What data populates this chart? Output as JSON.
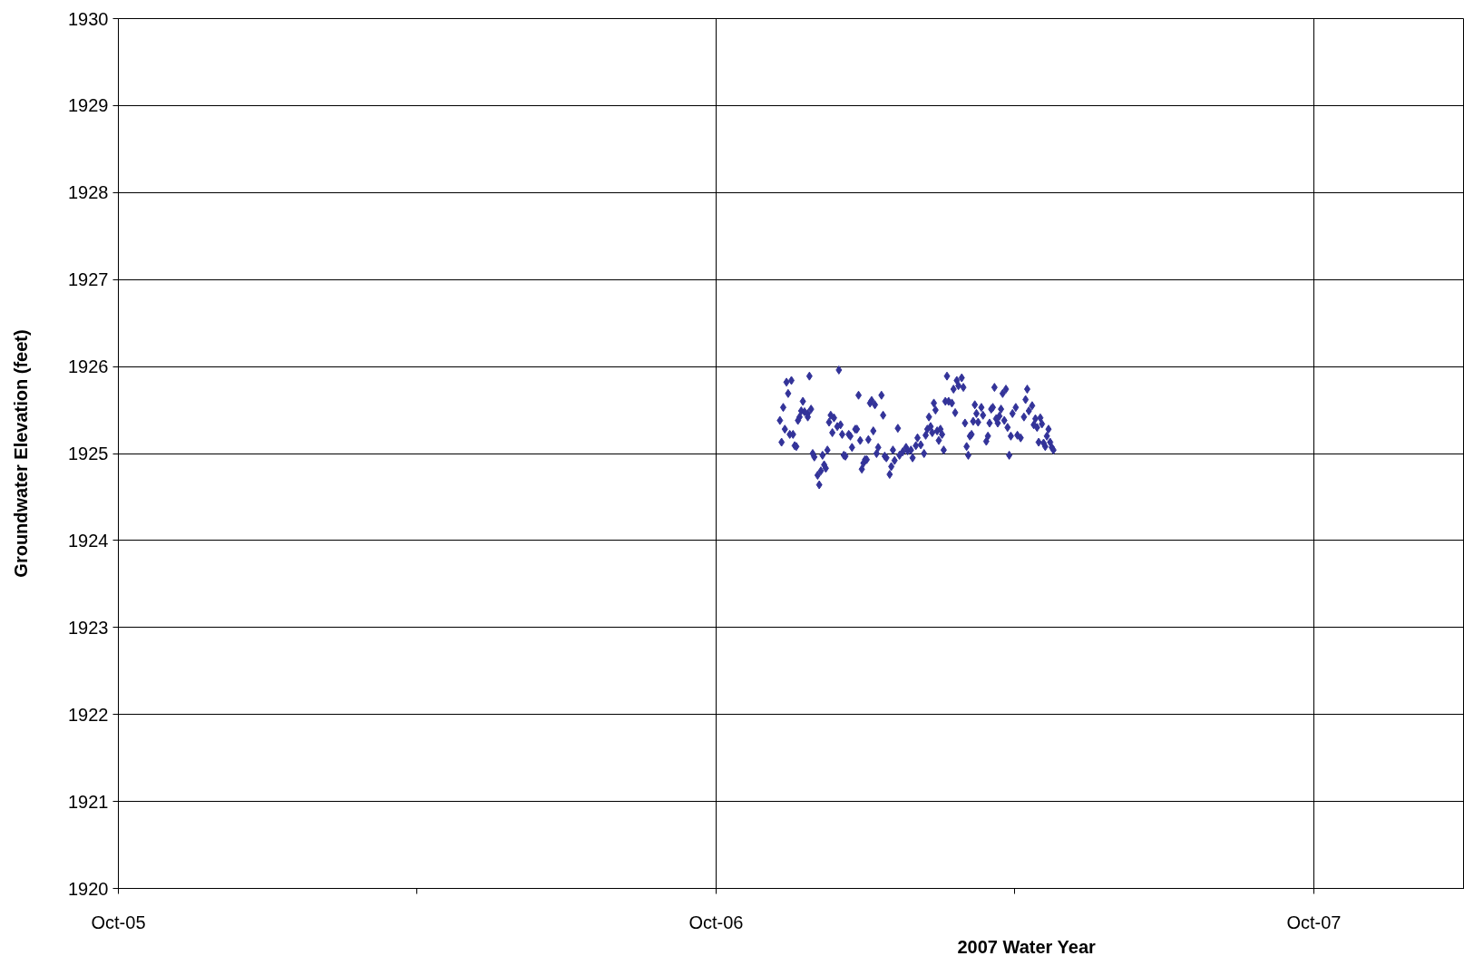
{
  "chart_data": {
    "type": "scatter",
    "xlabel": "2007 Water Year",
    "ylabel": "Groundwater Elevation (feet)",
    "x": [
      "2006-11-09",
      "2006-11-10",
      "2006-11-11",
      "2006-11-12",
      "2006-11-13",
      "2006-11-14",
      "2006-11-15",
      "2006-11-16",
      "2006-11-17",
      "2006-11-18",
      "2006-11-19",
      "2006-11-20",
      "2006-11-21",
      "2006-11-22",
      "2006-11-23",
      "2006-11-24",
      "2006-11-26",
      "2006-11-26",
      "2006-11-27",
      "2006-11-28",
      "2006-11-29",
      "2006-11-30",
      "2006-12-02",
      "2006-12-03",
      "2006-12-04",
      "2006-12-05",
      "2006-12-06",
      "2006-12-07",
      "2006-12-08",
      "2006-12-09",
      "2006-12-10",
      "2006-12-11",
      "2006-12-12",
      "2006-12-14",
      "2006-12-15",
      "2006-12-16",
      "2006-12-17",
      "2006-12-18",
      "2006-12-19",
      "2006-12-21",
      "2006-12-22",
      "2006-12-23",
      "2006-12-25",
      "2006-12-26",
      "2006-12-27",
      "2006-12-28",
      "2006-12-29",
      "2006-12-30",
      "2006-12-31",
      "2007-01-01",
      "2007-01-02",
      "2007-01-03",
      "2007-01-04",
      "2007-01-05",
      "2007-01-06",
      "2007-01-07",
      "2007-01-08",
      "2007-01-10",
      "2007-01-11",
      "2007-01-12",
      "2007-01-13",
      "2007-01-15",
      "2007-01-16",
      "2007-01-17",
      "2007-01-18",
      "2007-01-20",
      "2007-01-21",
      "2007-01-23",
      "2007-01-25",
      "2007-01-26",
      "2007-01-28",
      "2007-01-29",
      "2007-01-31",
      "2007-02-01",
      "2007-02-03",
      "2007-02-05",
      "2007-02-06",
      "2007-02-07",
      "2007-02-08",
      "2007-02-09",
      "2007-02-10",
      "2007-02-11",
      "2007-02-12",
      "2007-02-13",
      "2007-02-14",
      "2007-02-15",
      "2007-02-16",
      "2007-02-17",
      "2007-02-18",
      "2007-02-19",
      "2007-02-20",
      "2007-02-22",
      "2007-02-23",
      "2007-02-24",
      "2007-02-25",
      "2007-02-26",
      "2007-02-28",
      "2007-03-01",
      "2007-03-02",
      "2007-03-03",
      "2007-03-04",
      "2007-03-05",
      "2007-03-06",
      "2007-03-07",
      "2007-03-08",
      "2007-03-09",
      "2007-03-10",
      "2007-03-12",
      "2007-03-13",
      "2007-03-15",
      "2007-03-16",
      "2007-03-17",
      "2007-03-18",
      "2007-03-19",
      "2007-03-20",
      "2007-03-21",
      "2007-03-22",
      "2007-03-23",
      "2007-03-24",
      "2007-03-25",
      "2007-03-26",
      "2007-03-27",
      "2007-03-28",
      "2007-03-29",
      "2007-03-30",
      "2007-03-31",
      "2007-04-02",
      "2007-04-03",
      "2007-04-05",
      "2007-04-07",
      "2007-04-08",
      "2007-04-09",
      "2007-04-10",
      "2007-04-12",
      "2007-04-13",
      "2007-04-14",
      "2007-04-15",
      "2007-04-16",
      "2007-04-17",
      "2007-04-18",
      "2007-04-19",
      "2007-04-20",
      "2007-04-21",
      "2007-04-22",
      "2007-04-23",
      "2007-04-24",
      "2007-04-25"
    ],
    "values": [
      1925.38,
      1925.13,
      1925.53,
      1925.28,
      1925.82,
      1925.69,
      1925.22,
      1925.84,
      1925.22,
      1925.09,
      1925.08,
      1925.38,
      1925.42,
      1925.49,
      1925.6,
      1925.48,
      1925.46,
      1925.42,
      1925.89,
      1925.51,
      1925.0,
      1924.96,
      1924.75,
      1924.64,
      1924.8,
      1924.98,
      1924.87,
      1924.83,
      1925.04,
      1925.36,
      1925.44,
      1925.24,
      1925.41,
      1925.31,
      1925.96,
      1925.33,
      1925.22,
      1924.98,
      1924.97,
      1925.22,
      1925.2,
      1925.07,
      1925.28,
      1925.28,
      1925.67,
      1925.15,
      1924.82,
      1924.89,
      1924.93,
      1924.93,
      1925.16,
      1925.58,
      1925.61,
      1925.26,
      1925.56,
      1925.0,
      1925.07,
      1925.67,
      1925.44,
      1924.97,
      1924.95,
      1924.76,
      1924.85,
      1925.04,
      1924.92,
      1925.29,
      1924.98,
      1925.02,
      1925.07,
      1925.03,
      1925.04,
      1924.95,
      1925.09,
      1925.18,
      1925.1,
      1925.0,
      1925.21,
      1925.28,
      1925.42,
      1925.31,
      1925.24,
      1925.58,
      1925.5,
      1925.26,
      1925.15,
      1925.28,
      1925.22,
      1925.04,
      1925.6,
      1925.89,
      1925.6,
      1925.58,
      1925.74,
      1925.47,
      1925.84,
      1925.78,
      1925.87,
      1925.76,
      1925.35,
      1925.08,
      1924.98,
      1925.2,
      1925.22,
      1925.37,
      1925.56,
      1925.46,
      1925.36,
      1925.53,
      1925.44,
      1925.14,
      1925.2,
      1925.35,
      1925.51,
      1925.53,
      1925.76,
      1925.4,
      1925.35,
      1925.43,
      1925.51,
      1925.69,
      1925.38,
      1925.74,
      1925.3,
      1924.98,
      1925.2,
      1925.46,
      1925.53,
      1925.21,
      1925.18,
      1925.42,
      1925.62,
      1925.74,
      1925.49,
      1925.55,
      1925.33,
      1925.4,
      1925.3,
      1925.13,
      1925.41,
      1925.34,
      1925.12,
      1925.08,
      1925.2,
      1925.28,
      1925.13,
      1925.07,
      1925.04
    ],
    "color": "#333399",
    "marker": "diamond",
    "grid": true,
    "xlim": [
      "2005-10-01",
      "2008-01-01"
    ],
    "xticks": [
      {
        "value": "2005-10-01",
        "label": "Oct-05"
      },
      {
        "value": "2006-04-01",
        "label": null
      },
      {
        "value": "2006-10-01",
        "label": "Oct-06"
      },
      {
        "value": "2007-04-01",
        "label": null
      },
      {
        "value": "2007-10-01",
        "label": "Oct-07"
      }
    ],
    "ylim": [
      1920,
      1930
    ],
    "yticks": [
      1920,
      1921,
      1922,
      1923,
      1924,
      1925,
      1926,
      1927,
      1928,
      1929,
      1930
    ]
  }
}
